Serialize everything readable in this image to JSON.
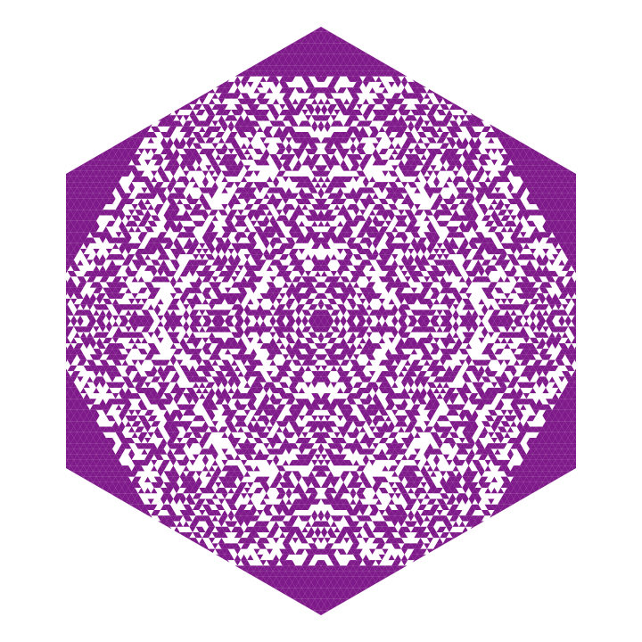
{
  "figure": {
    "kind": "hexagonal triangular-cell automaton pattern",
    "fill_color": "#7f1a8a",
    "background_color": "#ffffff",
    "shape": "hexagon",
    "symmetry": "six-fold"
  }
}
